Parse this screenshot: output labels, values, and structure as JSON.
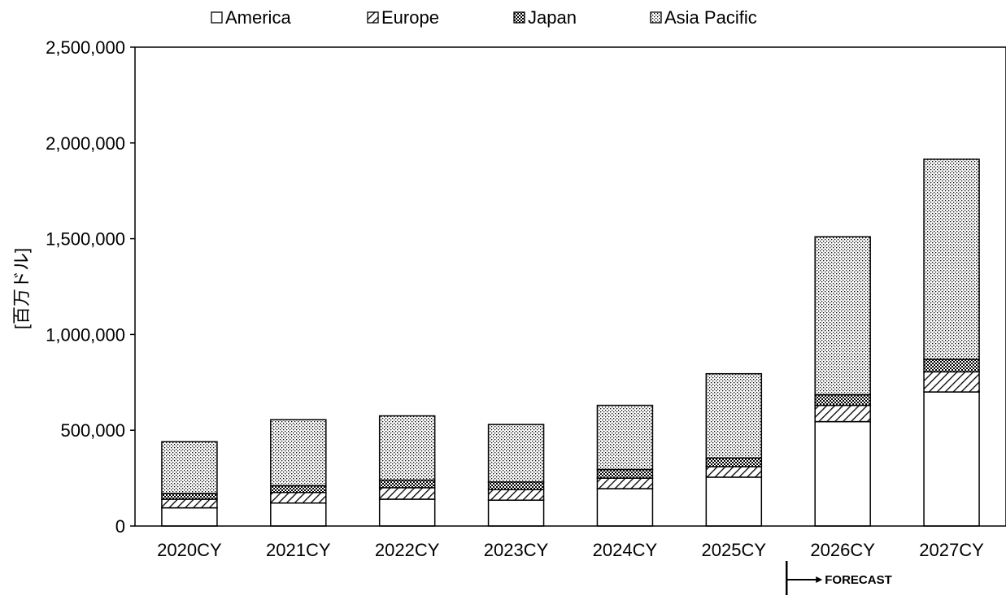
{
  "chart_data": {
    "type": "bar",
    "stacked": true,
    "title": "",
    "xlabel": "",
    "ylabel": "[百万ドル]",
    "ylim": [
      0,
      2500000
    ],
    "yticks": [
      0,
      500000,
      1000000,
      1500000,
      2000000,
      2500000
    ],
    "ytick_labels": [
      "0",
      "500,000",
      "1,000,000",
      "1,500,000",
      "2,000,000",
      "2,500,000"
    ],
    "grid": false,
    "legend_position": "top",
    "categories": [
      "2020CY",
      "2021CY",
      "2022CY",
      "2023CY",
      "2024CY",
      "2025CY",
      "2026CY",
      "2027CY"
    ],
    "series": [
      {
        "name": "America",
        "pattern": "blank",
        "values": [
          95000,
          120000,
          140000,
          135000,
          195000,
          255000,
          545000,
          700000
        ]
      },
      {
        "name": "Europe",
        "pattern": "diagonal",
        "values": [
          45000,
          55000,
          60000,
          55000,
          55000,
          55000,
          85000,
          105000
        ]
      },
      {
        "name": "Japan",
        "pattern": "crosshatch",
        "values": [
          30000,
          35000,
          40000,
          40000,
          45000,
          45000,
          55000,
          65000
        ]
      },
      {
        "name": "Asia Pacific",
        "pattern": "dots",
        "values": [
          270000,
          345000,
          335000,
          300000,
          335000,
          440000,
          825000,
          1045000
        ]
      }
    ],
    "annotations": [
      {
        "text": "FORECAST",
        "from_category": "2026CY"
      }
    ]
  },
  "colors": {
    "fill": "#ffffff",
    "stroke": "#000000"
  }
}
